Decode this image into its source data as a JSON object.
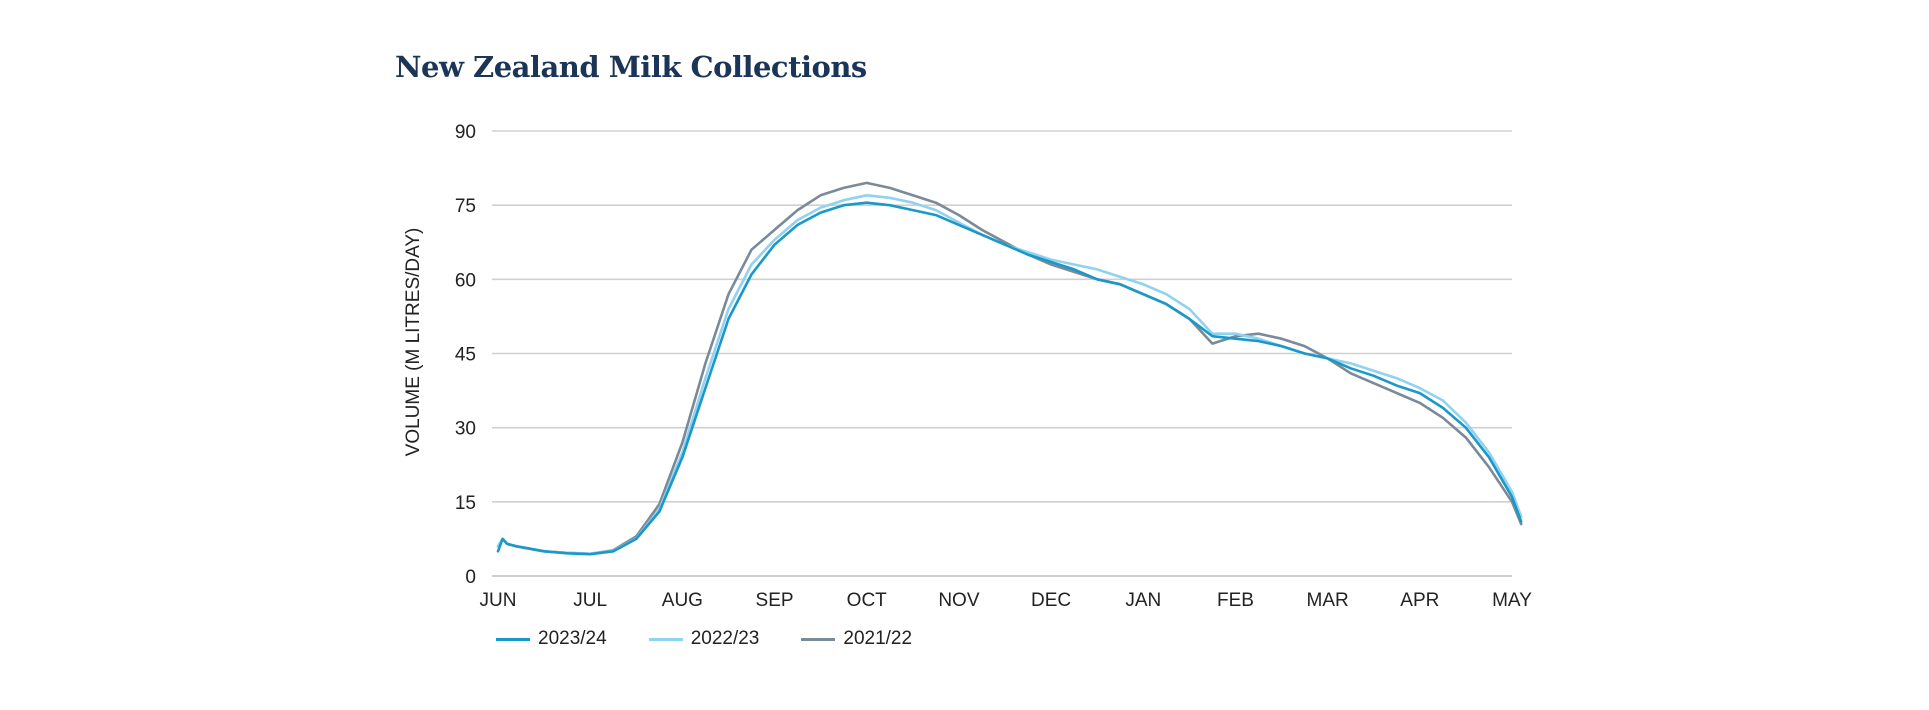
{
  "chart_data": {
    "type": "line",
    "title": "New Zealand Milk Collections",
    "ylabel": "VOLUME (M LITRES/DAY)",
    "xlabel": "",
    "ylim": [
      0,
      90
    ],
    "yticks": [
      0,
      15,
      30,
      45,
      60,
      75,
      90
    ],
    "categories": [
      "JUN",
      "JUL",
      "AUG",
      "SEP",
      "OCT",
      "NOV",
      "DEC",
      "JAN",
      "FEB",
      "MAR",
      "APR",
      "MAY"
    ],
    "grid": "horizontal",
    "legend_position": "bottom-left",
    "series": [
      {
        "name": "2023/24",
        "color": "#1b98c8",
        "x": [
          0,
          0.05,
          0.1,
          0.2,
          0.35,
          0.5,
          0.75,
          1.0,
          1.25,
          1.5,
          1.75,
          2.0,
          2.25,
          2.5,
          2.75,
          3.0,
          3.25,
          3.5,
          3.75,
          4.0,
          4.25,
          4.5,
          4.75,
          5.0,
          5.25,
          5.5,
          5.75,
          6.0,
          6.25,
          6.5,
          6.75,
          7.0,
          7.25,
          7.5,
          7.75,
          8.0,
          8.25,
          8.5,
          8.75,
          9.0,
          9.25,
          9.5,
          9.75,
          10.0,
          10.25,
          10.5,
          10.75,
          11.0,
          11.1
        ],
        "y": [
          5,
          7.5,
          6.5,
          6,
          5.5,
          5,
          4.6,
          4.4,
          5,
          7.5,
          13,
          24,
          38,
          52,
          61,
          67,
          71,
          73.5,
          75,
          75.5,
          75,
          74,
          73,
          71,
          69,
          67,
          65,
          63.5,
          62,
          60,
          59,
          57,
          55,
          52,
          48.5,
          48,
          47.5,
          46.5,
          45,
          44,
          42,
          40.5,
          38.5,
          37,
          34,
          30,
          24,
          16,
          11
        ]
      },
      {
        "name": "2022/23",
        "color": "#8fd3f0",
        "x": [
          0,
          0.05,
          0.1,
          0.2,
          0.35,
          0.5,
          0.75,
          1.0,
          1.25,
          1.5,
          1.75,
          2.0,
          2.25,
          2.5,
          2.75,
          3.0,
          3.25,
          3.5,
          3.75,
          4.0,
          4.25,
          4.5,
          4.75,
          5.0,
          5.25,
          5.5,
          5.75,
          6.0,
          6.25,
          6.5,
          6.75,
          7.0,
          7.25,
          7.5,
          7.75,
          8.0,
          8.25,
          8.5,
          8.75,
          9.0,
          9.25,
          9.5,
          9.75,
          10.0,
          10.25,
          10.5,
          10.75,
          11.0,
          11.1
        ],
        "y": [
          6,
          7.5,
          6.5,
          6,
          5.5,
          5,
          4.7,
          4.5,
          5.1,
          7.6,
          13.5,
          25,
          40,
          54,
          63,
          68,
          72,
          74.5,
          76,
          77,
          76.5,
          75.5,
          74,
          71.5,
          69,
          67,
          65.5,
          64,
          63,
          62,
          60.5,
          59,
          57,
          54,
          49,
          49,
          48,
          46.5,
          45,
          44,
          43,
          41.5,
          40,
          38,
          35.5,
          31,
          25,
          17,
          12
        ]
      },
      {
        "name": "2021/22",
        "color": "#7a8a98",
        "x": [
          0,
          0.05,
          0.1,
          0.2,
          0.35,
          0.5,
          0.75,
          1.0,
          1.25,
          1.5,
          1.75,
          2.0,
          2.25,
          2.5,
          2.75,
          3.0,
          3.25,
          3.5,
          3.75,
          4.0,
          4.25,
          4.5,
          4.75,
          5.0,
          5.25,
          5.5,
          5.75,
          6.0,
          6.25,
          6.5,
          6.75,
          7.0,
          7.25,
          7.5,
          7.75,
          8.0,
          8.25,
          8.5,
          8.75,
          9.0,
          9.25,
          9.5,
          9.75,
          10.0,
          10.25,
          10.5,
          10.75,
          11.0,
          11.1
        ],
        "y": [
          6,
          7.5,
          6.5,
          6,
          5.5,
          5,
          4.7,
          4.5,
          5.2,
          8,
          14.5,
          27,
          43,
          57,
          66,
          70,
          74,
          77,
          78.5,
          79.5,
          78.5,
          77,
          75.5,
          73,
          70,
          67.5,
          65,
          63,
          61.5,
          60,
          59,
          57,
          55,
          52,
          47,
          48.5,
          49,
          48,
          46.5,
          44,
          41,
          39,
          37,
          35,
          32,
          28,
          22,
          15,
          10.5
        ]
      }
    ]
  }
}
